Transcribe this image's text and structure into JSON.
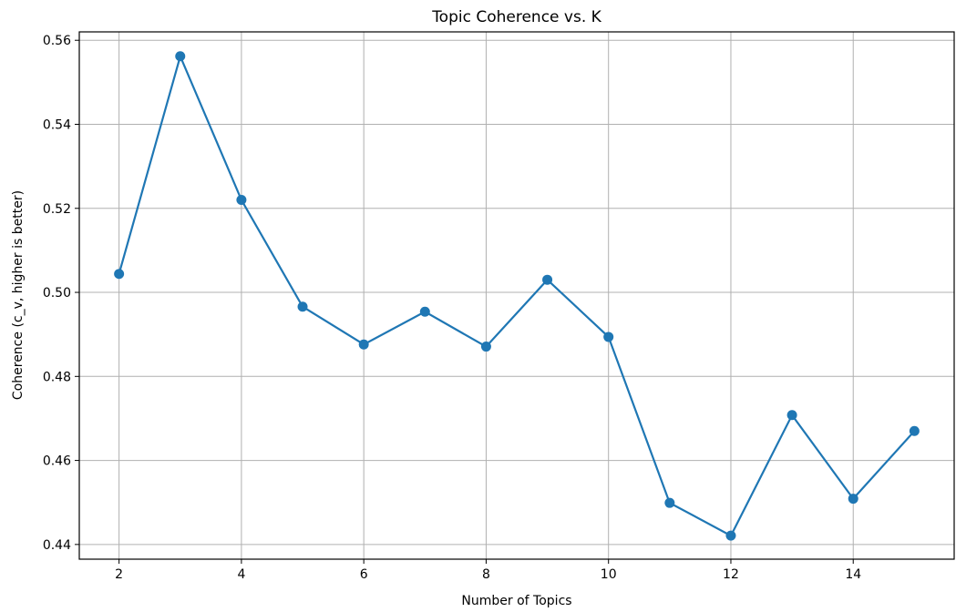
{
  "chart_data": {
    "type": "line",
    "title": "Topic Coherence vs. K",
    "xlabel": "Number of Topics",
    "ylabel": "Coherence (c_v, higher is better)",
    "xlim": [
      1.35,
      15.65
    ],
    "ylim": [
      0.4365,
      0.562
    ],
    "xticks": [
      2,
      4,
      6,
      8,
      10,
      12,
      14
    ],
    "yticks": [
      0.44,
      0.46,
      0.48,
      0.5,
      0.52,
      0.54,
      0.56
    ],
    "xtick_labels": [
      "2",
      "4",
      "6",
      "8",
      "10",
      "12",
      "14"
    ],
    "ytick_labels": [
      "0.44",
      "0.46",
      "0.48",
      "0.50",
      "0.52",
      "0.54",
      "0.56"
    ],
    "grid": true,
    "marker": "circle",
    "color": "#1f77b4",
    "x": [
      2,
      3,
      4,
      5,
      6,
      7,
      8,
      9,
      10,
      11,
      12,
      13,
      14,
      15
    ],
    "values": [
      0.5044,
      0.5562,
      0.522,
      0.4966,
      0.4876,
      0.4954,
      0.4871,
      0.503,
      0.4894,
      0.4499,
      0.4421,
      0.4708,
      0.4509,
      0.467
    ]
  }
}
